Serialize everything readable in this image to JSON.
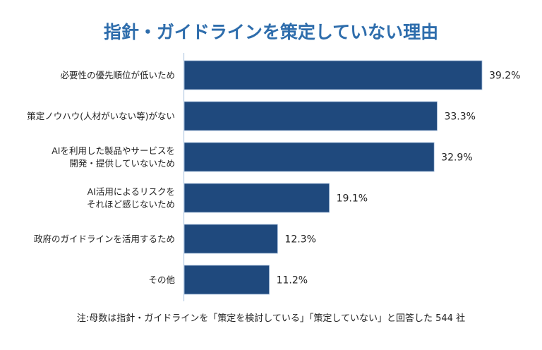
{
  "chart_data": {
    "type": "bar",
    "orientation": "horizontal",
    "title": "指針・ガイドラインを策定していない理由",
    "categories": [
      [
        "必要性の優先順位が低いため"
      ],
      [
        "策定ノウハウ(人材がいない等)がない"
      ],
      [
        "AIを利用した製品やサービスを",
        "開発・提供していないため"
      ],
      [
        "AI活用によるリスクを",
        "それほど感じないため"
      ],
      [
        "政府のガイドラインを活用するため"
      ],
      [
        "その他"
      ]
    ],
    "values": [
      39.2,
      33.3,
      32.9,
      19.1,
      12.3,
      11.2
    ],
    "value_labels": [
      "39.2%",
      "33.3%",
      "32.9%",
      "19.1%",
      "12.3%",
      "11.2%"
    ],
    "unit": "%",
    "xlim": [
      0,
      40
    ],
    "xlabel": "",
    "ylabel": "",
    "grid": false,
    "bar_color": "#1f497d",
    "axis_color": "#b8cce4",
    "note": "注:母数は指針・ガイドラインを「策定を検討している」「策定していない」と回答した 544 社"
  }
}
